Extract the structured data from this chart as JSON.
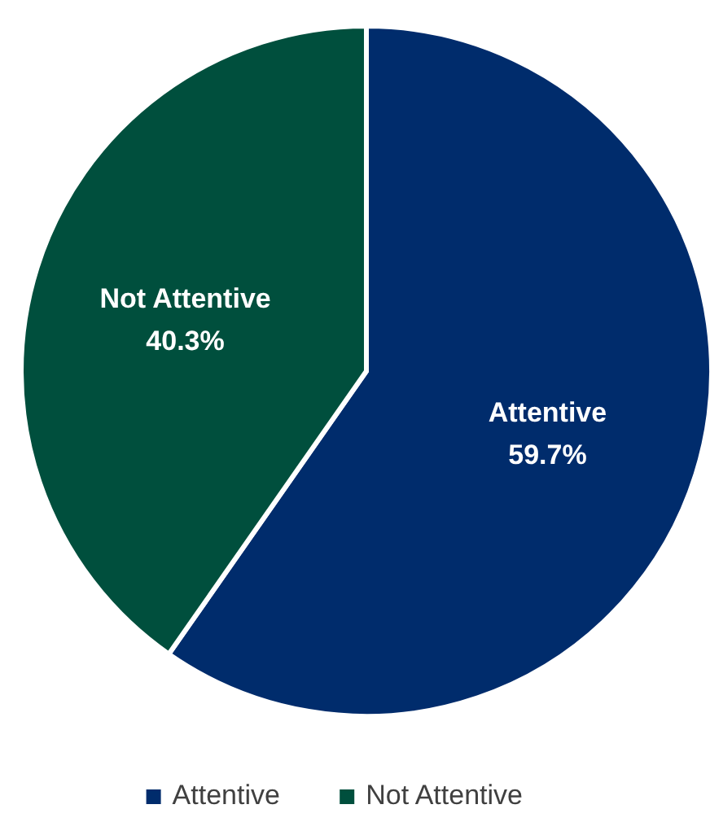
{
  "chart_data": {
    "type": "pie",
    "categories": [
      "Attentive",
      "Not Attentive"
    ],
    "values": [
      59.7,
      40.3
    ],
    "colors": [
      "#002c6c",
      "#004f3d"
    ],
    "value_labels": [
      "59.7%",
      "40.3%"
    ],
    "legend": "bottom"
  }
}
